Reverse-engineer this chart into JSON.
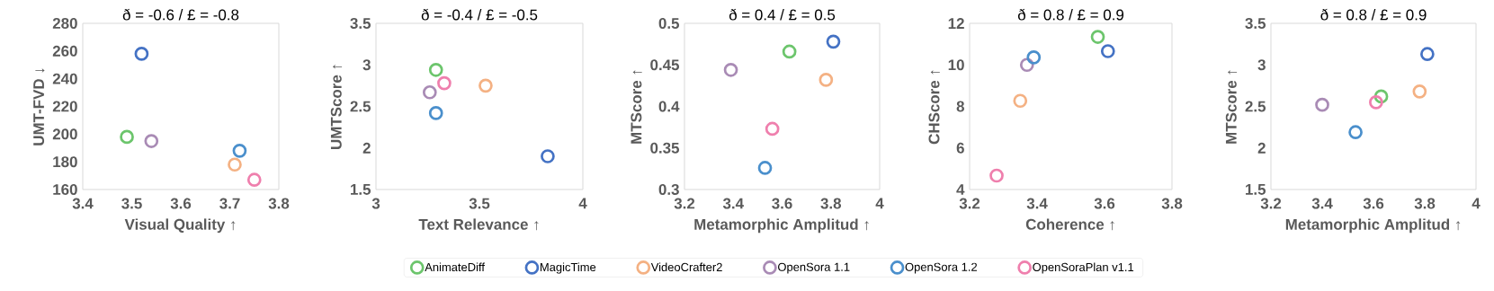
{
  "chart_data": [
    {
      "type": "scatter",
      "title": "ð = -0.6  /  £ = -0.8",
      "xlabel": "Visual Quality ↑",
      "ylabel": "UMT-FVD ↓",
      "xlim": [
        3.4,
        3.8
      ],
      "ylim": [
        160,
        280
      ],
      "xticks": [
        3.4,
        3.5,
        3.6,
        3.7,
        3.8
      ],
      "yticks": [
        160,
        180,
        200,
        220,
        240,
        260,
        280
      ],
      "marker": "circle",
      "grid": false,
      "legend": false,
      "series": [
        {
          "color": "#6cc56c",
          "x": [
            3.49
          ],
          "values": [
            198
          ]
        },
        {
          "color": "#4472c4",
          "x": [
            3.52
          ],
          "values": [
            258
          ]
        },
        {
          "color": "#f4b183",
          "x": [
            3.71
          ],
          "values": [
            178
          ]
        },
        {
          "color": "#a98bb5",
          "x": [
            3.54
          ],
          "values": [
            195
          ]
        },
        {
          "color": "#4a8fcc",
          "x": [
            3.72
          ],
          "values": [
            188
          ]
        },
        {
          "color": "#ef7fad",
          "x": [
            3.75
          ],
          "values": [
            167
          ]
        }
      ]
    },
    {
      "type": "scatter",
      "title": "ð = -0.4  /  £ = -0.5",
      "xlabel": "Text Relevance ↑",
      "ylabel": "UMTScore ↑",
      "xlim": [
        3,
        4
      ],
      "ylim": [
        1.5,
        3.5
      ],
      "xticks": [
        3,
        3.5,
        4
      ],
      "yticks": [
        1.5,
        2,
        2.5,
        3,
        3.5
      ],
      "marker": "circle",
      "grid": false,
      "legend": false,
      "series": [
        {
          "color": "#6cc56c",
          "x": [
            3.29
          ],
          "values": [
            2.94
          ]
        },
        {
          "color": "#4472c4",
          "x": [
            3.83
          ],
          "values": [
            1.9
          ]
        },
        {
          "color": "#f4b183",
          "x": [
            3.53
          ],
          "values": [
            2.75
          ]
        },
        {
          "color": "#a98bb5",
          "x": [
            3.26
          ],
          "values": [
            2.67
          ]
        },
        {
          "color": "#4a8fcc",
          "x": [
            3.29
          ],
          "values": [
            2.42
          ]
        },
        {
          "color": "#ef7fad",
          "x": [
            3.33
          ],
          "values": [
            2.78
          ]
        }
      ]
    },
    {
      "type": "scatter",
      "title": "ð = 0.4  /  £ = 0.5",
      "xlabel": "Metamorphic Amplitud ↑",
      "ylabel": "MTScore ↑",
      "xlim": [
        3.2,
        4
      ],
      "ylim": [
        0.3,
        0.5
      ],
      "xticks": [
        3.2,
        3.4,
        3.6,
        3.8,
        4
      ],
      "yticks": [
        0.3,
        0.35,
        0.4,
        0.45,
        0.5
      ],
      "marker": "circle",
      "grid": false,
      "legend": "bottom",
      "series": [
        {
          "name": "AnimateDiff",
          "color": "#6cc56c",
          "x": [
            3.63
          ],
          "values": [
            0.466
          ]
        },
        {
          "name": "MagicTime",
          "color": "#4472c4",
          "x": [
            3.81
          ],
          "values": [
            0.478
          ]
        },
        {
          "name": "VideoCrafter2",
          "color": "#f4b183",
          "x": [
            3.78
          ],
          "values": [
            0.432
          ]
        },
        {
          "name": "OpenSora 1.1",
          "color": "#a98bb5",
          "x": [
            3.39
          ],
          "values": [
            0.444
          ]
        },
        {
          "name": "OpenSora 1.2",
          "color": "#4a8fcc",
          "x": [
            3.53
          ],
          "values": [
            0.326
          ]
        },
        {
          "name": "OpenSoraPlan v1.1",
          "color": "#ef7fad",
          "x": [
            3.56
          ],
          "values": [
            0.373
          ]
        }
      ]
    },
    {
      "type": "scatter",
      "title": "ð = 0.8  /  £ = 0.9",
      "xlabel": "Coherence ↑",
      "ylabel": "CHScore ↑",
      "xlim": [
        3.2,
        3.8
      ],
      "ylim": [
        4,
        12
      ],
      "xticks": [
        3.2,
        3.4,
        3.6,
        3.8
      ],
      "yticks": [
        4,
        6,
        8,
        10,
        12
      ],
      "marker": "circle",
      "grid": false,
      "legend": false,
      "series": [
        {
          "color": "#6cc56c",
          "x": [
            3.58
          ],
          "values": [
            11.35
          ]
        },
        {
          "color": "#4472c4",
          "x": [
            3.61
          ],
          "values": [
            10.66
          ]
        },
        {
          "color": "#f4b183",
          "x": [
            3.35
          ],
          "values": [
            8.27
          ]
        },
        {
          "color": "#a98bb5",
          "x": [
            3.37
          ],
          "values": [
            10.0
          ]
        },
        {
          "color": "#4a8fcc",
          "x": [
            3.39
          ],
          "values": [
            10.36
          ]
        },
        {
          "color": "#ef7fad",
          "x": [
            3.28
          ],
          "values": [
            4.67
          ]
        }
      ]
    },
    {
      "type": "scatter",
      "title": "ð = 0.8  /  £ = 0.9",
      "xlabel": "Metamorphic Amplitud ↑",
      "ylabel": "MTScore ↑",
      "xlim": [
        3.2,
        4
      ],
      "ylim": [
        1.5,
        3.5
      ],
      "xticks": [
        3.2,
        3.4,
        3.6,
        3.8,
        4
      ],
      "yticks": [
        1.5,
        2,
        2.5,
        3,
        3.5
      ],
      "marker": "circle",
      "grid": false,
      "legend": false,
      "series": [
        {
          "color": "#6cc56c",
          "x": [
            3.63
          ],
          "values": [
            2.62
          ]
        },
        {
          "color": "#4472c4",
          "x": [
            3.81
          ],
          "values": [
            3.13
          ]
        },
        {
          "color": "#f4b183",
          "x": [
            3.78
          ],
          "values": [
            2.68
          ]
        },
        {
          "color": "#a98bb5",
          "x": [
            3.4
          ],
          "values": [
            2.52
          ]
        },
        {
          "color": "#4a8fcc",
          "x": [
            3.53
          ],
          "values": [
            2.19
          ]
        },
        {
          "color": "#ef7fad",
          "x": [
            3.61
          ],
          "values": [
            2.55
          ]
        }
      ]
    }
  ]
}
